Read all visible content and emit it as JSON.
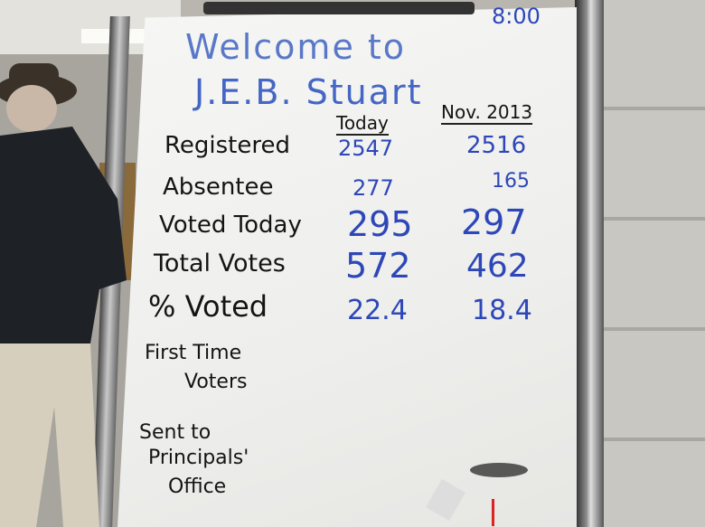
{
  "board": {
    "time": "8:00",
    "welcome": "Welcome to",
    "school": "J.E.B. Stuart",
    "columns": [
      "Today",
      "Nov. 2013"
    ],
    "rows": [
      {
        "label": "Registered",
        "today": "2547",
        "nov2013": "2516"
      },
      {
        "label": "Absentee",
        "today": "277",
        "nov2013": "165"
      },
      {
        "label": "Voted Today",
        "today": "295",
        "nov2013": "297"
      },
      {
        "label": "Total Votes",
        "today": "572",
        "nov2013": "462"
      },
      {
        "label": "% Voted",
        "today": "22.4",
        "nov2013": "18.4"
      }
    ],
    "extra_rows": [
      {
        "line1": "First Time",
        "line2": "Voters"
      },
      {
        "line1": "Sent to",
        "line2": "Principals'",
        "line3": "Office"
      }
    ]
  },
  "colors": {
    "marker_blue": "#2d47b8",
    "marker_black": "#141414",
    "board": "#f2f2f0"
  }
}
